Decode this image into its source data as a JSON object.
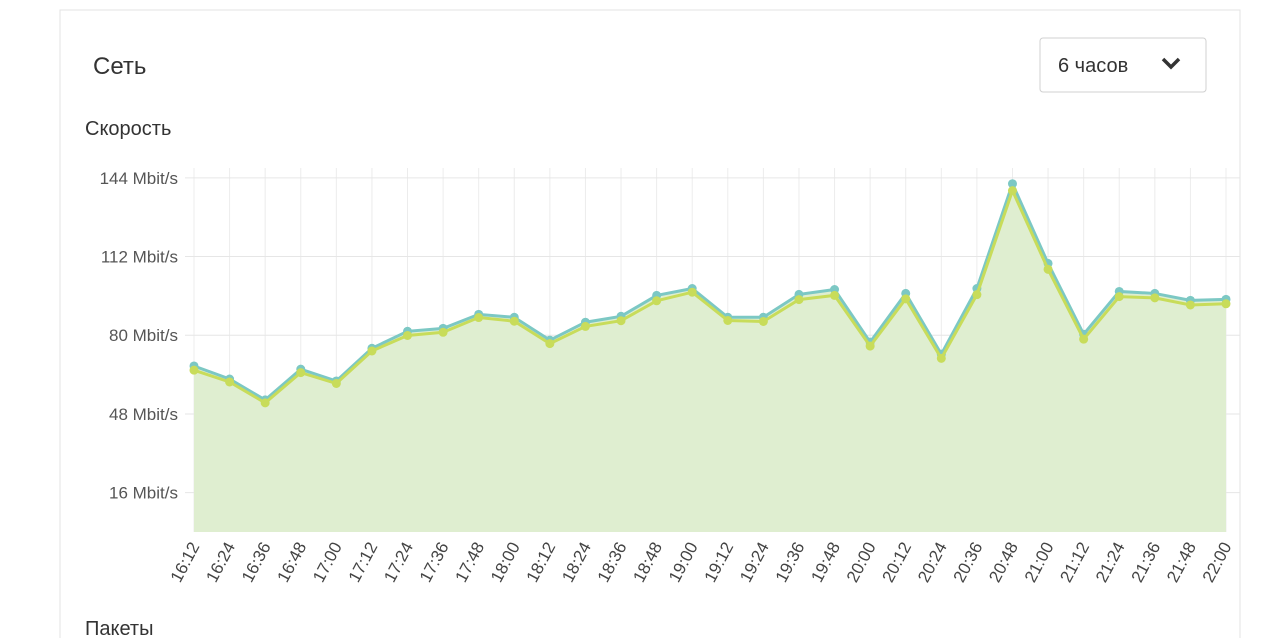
{
  "header": {
    "title": "Сеть",
    "dropdown": "6 часов"
  },
  "section": "Скорость",
  "next_section": "Пакеты",
  "chart_data": {
    "type": "line",
    "categories": [
      "16:12",
      "16:24",
      "16:36",
      "16:48",
      "17:00",
      "17:12",
      "17:24",
      "17:36",
      "17:48",
      "18:00",
      "18:12",
      "18:24",
      "18:36",
      "18:48",
      "19:00",
      "19:12",
      "19:24",
      "19:36",
      "19:48",
      "20:00",
      "20:12",
      "20:24",
      "20:36",
      "20:48",
      "21:00",
      "21:12",
      "21:24",
      "21:36",
      "21:48",
      "22:00"
    ],
    "series": [
      {
        "color": "#7cc8c4",
        "values": [
          67.5,
          62.2,
          53.7,
          66.2,
          61.4,
          74.7,
          81.6,
          82.8,
          88.5,
          87.3,
          78.0,
          85.3,
          87.7,
          96.2,
          99.0,
          87.3,
          87.3,
          96.6,
          98.6,
          77.2,
          97.0,
          72.3,
          99.0,
          141.6,
          109.2,
          80.4,
          97.8,
          97.0,
          94.2,
          94.6
        ]
      },
      {
        "color": "#c8dc5a",
        "values": [
          65.8,
          61.0,
          52.5,
          64.8,
          60.4,
          73.6,
          79.9,
          81.2,
          87.2,
          85.7,
          76.6,
          83.6,
          85.9,
          94.0,
          97.5,
          86.0,
          85.6,
          94.5,
          96.2,
          75.6,
          94.8,
          70.6,
          96.5,
          138.8,
          106.8,
          78.4,
          95.7,
          95.2,
          92.3,
          92.8
        ]
      }
    ],
    "fill": "#dfeed0",
    "ylim": [
      0,
      148
    ],
    "yticks": [
      {
        "value": 16,
        "label": "16 Mbit/s"
      },
      {
        "value": 48,
        "label": "48 Mbit/s"
      },
      {
        "value": 80,
        "label": "80 Mbit/s"
      },
      {
        "value": 112,
        "label": "112 Mbit/s"
      },
      {
        "value": 144,
        "label": "144 Mbit/s"
      }
    ],
    "grid": true
  }
}
